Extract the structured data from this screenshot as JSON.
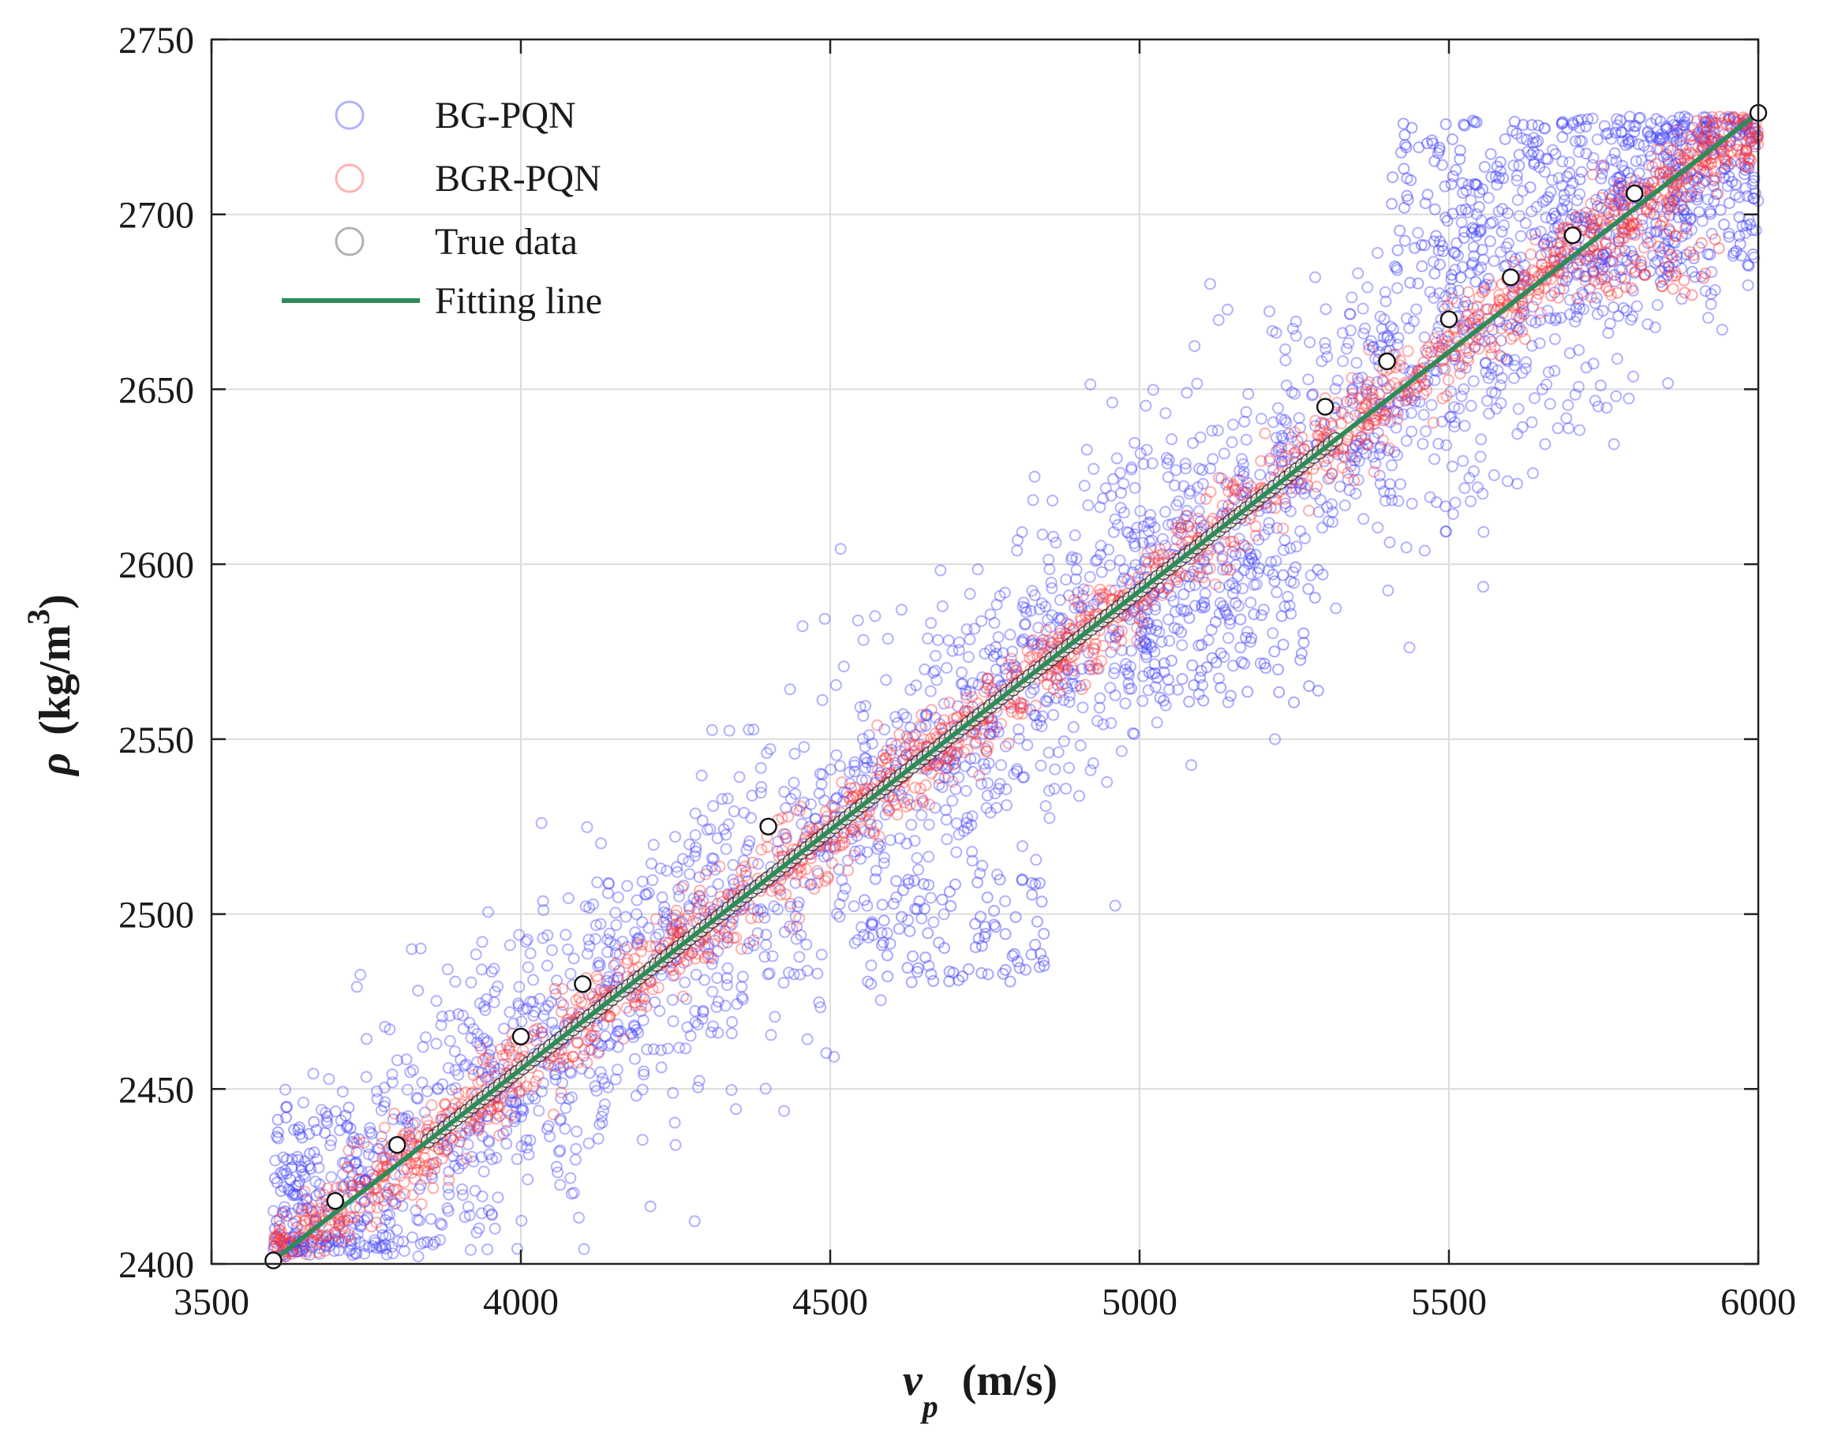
{
  "chart_data": {
    "type": "scatter",
    "title": "",
    "xlabel": {
      "symbol": "v",
      "subscript": "p",
      "unit": "(m/s)"
    },
    "ylabel": {
      "symbol": "ρ",
      "unit": "(kg/m",
      "superscript": "3",
      "close": ")"
    },
    "xlim": [
      3500,
      6000
    ],
    "ylim": [
      2400,
      2750
    ],
    "xticks": [
      "3500",
      "4000",
      "4500",
      "5000",
      "5500",
      "6000"
    ],
    "yticks": [
      "2400",
      "2450",
      "2500",
      "2550",
      "2600",
      "2650",
      "2700",
      "2750"
    ],
    "grid": true,
    "legend_position": "top-left",
    "legend": [
      "BG-PQN",
      "BGR-PQN",
      "True data",
      "Fitting line"
    ],
    "fitting_line": {
      "name": "Fitting line",
      "x": [
        3600,
        6000
      ],
      "y": [
        2401,
        2729
      ],
      "color": "#2e8b57"
    },
    "series": [
      {
        "name": "BG-PQN",
        "color": "#3b3bff",
        "spread": 22,
        "n_points": 2600,
        "clusters": [
          {
            "x": [
              5400,
              5900
            ],
            "y": [
              2680,
              2728
            ],
            "n": 260
          },
          {
            "x": [
              5850,
              6000
            ],
            "y": [
              2685,
              2722
            ],
            "n": 70
          },
          {
            "x": [
              4550,
              4850
            ],
            "y": [
              2480,
              2510
            ],
            "n": 90
          },
          {
            "x": [
              5000,
              5300
            ],
            "y": [
              2560,
              2600
            ],
            "n": 80
          },
          {
            "x": [
              3600,
              3750
            ],
            "y": [
              2410,
              2445
            ],
            "n": 70
          }
        ]
      },
      {
        "name": "BGR-PQN",
        "color": "#ff3333",
        "spread": 6,
        "n_points": 1700,
        "clusters": [
          {
            "x": [
              5650,
              5950
            ],
            "y": [
              2676,
              2700
            ],
            "n": 60
          },
          {
            "x": [
              5900,
              6000
            ],
            "y": [
              2712,
              2728
            ],
            "n": 40
          }
        ]
      },
      {
        "name": "True data",
        "color": "#333333",
        "dense_range": [
          3850,
          5320
        ],
        "x": [
          3600,
          3700,
          3800,
          4000,
          4100,
          4400,
          5300,
          5400,
          5500,
          5600,
          5700,
          5800,
          6000
        ],
        "y": [
          2401,
          2418,
          2434,
          2465,
          2480,
          2525,
          2645,
          2658,
          2670,
          2682,
          2694,
          2706,
          2729
        ]
      }
    ]
  }
}
